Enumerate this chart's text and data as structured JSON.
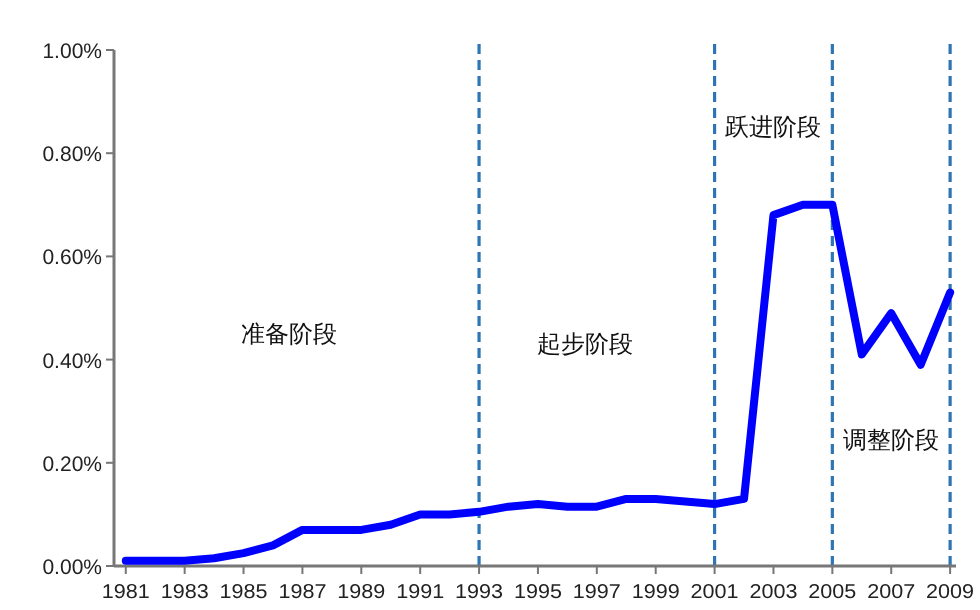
{
  "chart_data": {
    "type": "line",
    "x": [
      1981,
      1982,
      1983,
      1984,
      1985,
      1986,
      1987,
      1988,
      1989,
      1990,
      1991,
      1992,
      1993,
      1994,
      1995,
      1996,
      1997,
      1998,
      1999,
      2000,
      2001,
      2002,
      2003,
      2004,
      2005,
      2006,
      2007,
      2008,
      2009
    ],
    "series": [
      {
        "color": "#0000ff",
        "values": [
          0.01,
          0.01,
          0.01,
          0.015,
          0.025,
          0.04,
          0.07,
          0.07,
          0.07,
          0.08,
          0.1,
          0.1,
          0.105,
          0.115,
          0.12,
          0.115,
          0.115,
          0.13,
          0.13,
          0.125,
          0.12,
          0.13,
          0.68,
          0.7,
          0.7,
          0.41,
          0.49,
          0.39,
          0.53
        ]
      }
    ],
    "xlim": [
      1980.6,
      2009.2
    ],
    "xticks": [
      1981,
      1983,
      1985,
      1987,
      1989,
      1991,
      1993,
      1995,
      1997,
      1999,
      2001,
      2003,
      2005,
      2007,
      2009
    ],
    "ylim": [
      0,
      1
    ],
    "yticks": [
      {
        "value": 0,
        "label": "0.00%"
      },
      {
        "value": 0.2,
        "label": "0.20%"
      },
      {
        "value": 0.4,
        "label": "0.40%"
      },
      {
        "value": 0.6,
        "label": "0.60%"
      },
      {
        "value": 0.8,
        "label": "0.80%"
      },
      {
        "value": 1,
        "label": "1.00%"
      }
    ],
    "grid": false,
    "marker": "none",
    "line_style": "solid",
    "ref_lines": [
      {
        "axis": "x",
        "value": 1993,
        "color": "#2e75b6",
        "line_style": "dashed"
      },
      {
        "axis": "x",
        "value": 2001,
        "color": "#2e75b6",
        "line_style": "dashed"
      },
      {
        "axis": "x",
        "value": 2005,
        "color": "#2e75b6",
        "line_style": "dashed"
      },
      {
        "axis": "x",
        "value": 2009,
        "color": "#2e75b6",
        "line_style": "dashed"
      }
    ],
    "annotations": [
      "准备阶段",
      "起步阶段",
      "跃进阶段",
      "调整阶段"
    ]
  }
}
